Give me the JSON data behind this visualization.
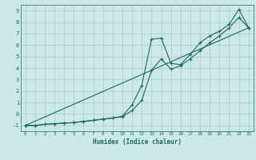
{
  "xlabel": "Humidex (Indice chaleur)",
  "background_color": "#cce8e8",
  "grid_color": "#aacccc",
  "line_color": "#1a6b5a",
  "xlim": [
    -0.5,
    23.5
  ],
  "ylim": [
    -1.5,
    9.5
  ],
  "xticks": [
    0,
    1,
    2,
    3,
    4,
    5,
    6,
    7,
    8,
    9,
    10,
    11,
    12,
    13,
    14,
    15,
    16,
    17,
    18,
    19,
    20,
    21,
    22,
    23
  ],
  "yticks": [
    -1,
    0,
    1,
    2,
    3,
    4,
    5,
    6,
    7,
    8,
    9
  ],
  "series1_x": [
    0,
    1,
    2,
    3,
    4,
    5,
    6,
    7,
    8,
    9,
    10,
    11,
    12,
    13,
    14,
    15,
    16,
    17,
    18,
    19,
    20,
    21,
    22,
    23
  ],
  "series1_y": [
    -1,
    -1,
    -0.9,
    -0.85,
    -0.8,
    -0.75,
    -0.65,
    -0.55,
    -0.45,
    -0.35,
    -0.2,
    0.8,
    2.5,
    6.5,
    6.6,
    4.4,
    4.3,
    5.2,
    6.2,
    6.8,
    7.2,
    7.8,
    9.1,
    7.5
  ],
  "series2_x": [
    0,
    1,
    2,
    3,
    4,
    5,
    6,
    7,
    8,
    9,
    10,
    11,
    12,
    13,
    14,
    15,
    16,
    17,
    18,
    19,
    20,
    21,
    22,
    23
  ],
  "series2_y": [
    -1,
    -1,
    -0.9,
    -0.85,
    -0.8,
    -0.75,
    -0.65,
    -0.55,
    -0.45,
    -0.35,
    -0.25,
    0.3,
    1.2,
    3.8,
    4.8,
    3.9,
    4.2,
    4.8,
    5.5,
    6.2,
    6.8,
    7.5,
    8.4,
    7.5
  ],
  "series3_x": [
    0,
    23
  ],
  "series3_y": [
    -1,
    7.5
  ]
}
